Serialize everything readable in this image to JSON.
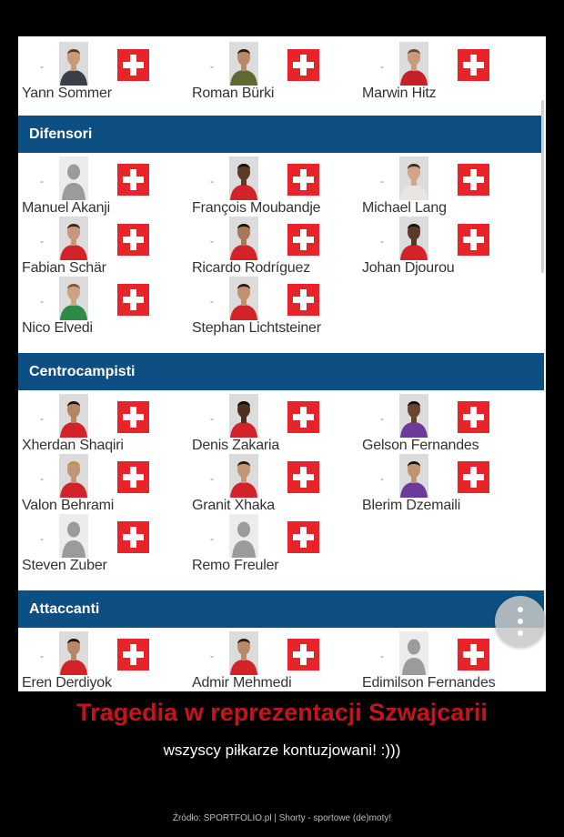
{
  "sections": [
    {
      "header": "",
      "players": [
        {
          "name": "Yann Sommer",
          "dash": "-",
          "photo": true,
          "skin": "#c89a78",
          "shirt": "#3c3f49",
          "hair": "#5a3c22"
        },
        {
          "name": "Roman Bürki",
          "dash": "-",
          "photo": true,
          "skin": "#b98a66",
          "shirt": "#5d6b33",
          "hair": "#2a1d14"
        },
        {
          "name": "Marwin Hitz",
          "dash": "-",
          "photo": true,
          "skin": "#c99a7b",
          "shirt": "#c62128",
          "hair": "#6a4a2d"
        }
      ]
    },
    {
      "header": "Difensori",
      "players": [
        {
          "name": "Manuel Akanji",
          "dash": "-",
          "photo": false
        },
        {
          "name": "François Moubandje",
          "dash": "-",
          "photo": true,
          "skin": "#5e3b26",
          "shirt": "#d2232b",
          "hair": "#1a120c"
        },
        {
          "name": "Michael Lang",
          "dash": "-",
          "photo": true,
          "skin": "#d1a585",
          "shirt": "#e9e6e2",
          "hair": "#3e2e22"
        },
        {
          "name": "Fabian Schär",
          "dash": "-",
          "photo": true,
          "skin": "#c7987a",
          "shirt": "#d2232b",
          "hair": "#3c281a"
        },
        {
          "name": "Ricardo Rodríguez",
          "dash": "-",
          "photo": true,
          "skin": "#a97656",
          "shirt": "#d2232b",
          "hair": "#1e140d"
        },
        {
          "name": "Johan Djourou",
          "dash": "-",
          "photo": true,
          "skin": "#5a3927",
          "shirt": "#d2232b",
          "hair": "#1a120c"
        },
        {
          "name": "Nico Elvedi",
          "dash": "-",
          "photo": true,
          "skin": "#cfa283",
          "shirt": "#2c8c46",
          "hair": "#7a5a3a"
        },
        {
          "name": "Stephan Lichtsteiner",
          "dash": "-",
          "photo": true,
          "skin": "#c0906f",
          "shirt": "#d2232b",
          "hair": "#2b1e14"
        }
      ]
    },
    {
      "header": "Centrocampisti",
      "players": [
        {
          "name": "Xherdan Shaqiri",
          "dash": "-",
          "photo": true,
          "skin": "#b78563",
          "shirt": "#d2232b",
          "hair": "#1f1510"
        },
        {
          "name": "Denis Zakaria",
          "dash": "-",
          "photo": true,
          "skin": "#4d3020",
          "shirt": "#d2232b",
          "hair": "#140d08"
        },
        {
          "name": "Gelson Fernandes",
          "dash": "-",
          "photo": true,
          "skin": "#6a452d",
          "shirt": "#6b3a9a",
          "hair": "#140d08"
        },
        {
          "name": "Valon Behrami",
          "dash": "-",
          "photo": true,
          "skin": "#c29575",
          "shirt": "#d2232b",
          "hair": "#b89a4a"
        },
        {
          "name": "Granit Xhaka",
          "dash": "-",
          "photo": true,
          "skin": "#c49676",
          "shirt": "#d2232b",
          "hair": "#2b1d13"
        },
        {
          "name": "Blerim Dzemaili",
          "dash": "-",
          "photo": true,
          "skin": "#c09373",
          "shirt": "#6b3a9a",
          "hair": "#1e140d"
        },
        {
          "name": "Steven Zuber",
          "dash": "-",
          "photo": false
        },
        {
          "name": "Remo Freuler",
          "dash": "-",
          "photo": false
        }
      ]
    },
    {
      "header": "Attaccanti",
      "players": [
        {
          "name": "Eren Derdiyok",
          "dash": "-",
          "photo": true,
          "skin": "#b88866",
          "shirt": "#d2232b",
          "hair": "#1e140d"
        },
        {
          "name": "Admir Mehmedi",
          "dash": "-",
          "photo": true,
          "skin": "#b98a68",
          "shirt": "#d2232b",
          "hair": "#2b1d13"
        },
        {
          "name": "Edimilson Fernandes",
          "dash": "-",
          "photo": false
        }
      ]
    }
  ],
  "caption": {
    "title": "Tragedia w reprezentacji Szwajcarii",
    "subtitle": "wszyscy piłkarze kontuzjowani! :)))",
    "source": "Źródło: SPORTFOLIO.pl | Shorty - sportowe (de)moty!"
  },
  "colors": {
    "header_bg": "#0d4f83",
    "flag_red": "#e8232a",
    "title_red": "#c8131b"
  }
}
